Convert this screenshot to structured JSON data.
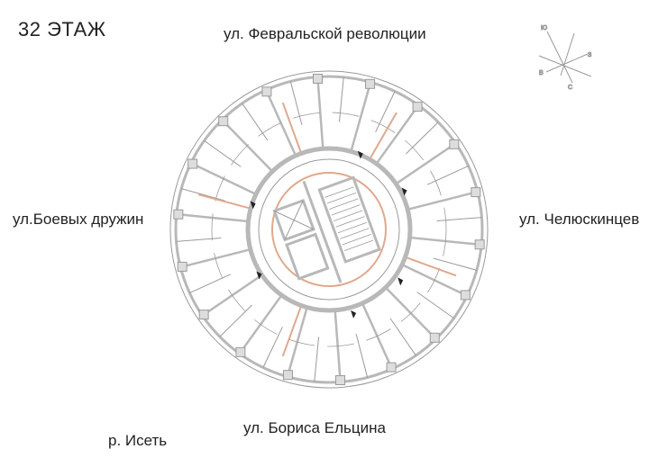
{
  "floor_title": "32 ЭТАЖ",
  "streets": {
    "north": "ул. Февральской революции",
    "west": "ул.Боевых дружин",
    "east": "ул. Челюскинцев",
    "south": "ул. Бориса Ельцина",
    "river": "р. Исеть"
  },
  "compass": {
    "top": "Ю",
    "right": "З",
    "left": "В",
    "bottom": "С"
  },
  "colors": {
    "walls": "#b8b8b8",
    "accent_walls": "#e0a88c",
    "lines": "#9a9a9a"
  }
}
